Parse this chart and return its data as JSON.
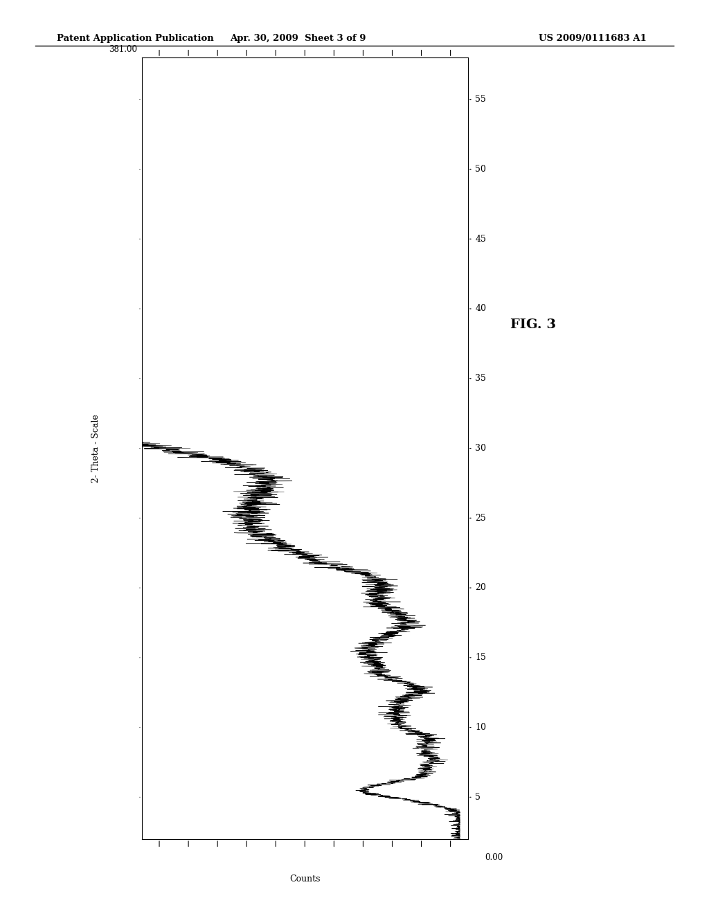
{
  "header_left": "Patent Application Publication",
  "header_mid": "Apr. 30, 2009  Sheet 3 of 9",
  "header_right": "US 2009/0111683 A1",
  "fig_label": "FIG. 3",
  "x_label": "Counts",
  "y_label": "2- Theta - Scale",
  "count_max": 381.0,
  "count_min": 0.0,
  "theta_min": 2,
  "theta_max": 58,
  "theta_ticks": [
    5,
    10,
    15,
    20,
    25,
    30,
    35,
    40,
    45,
    50,
    55
  ],
  "background_color": "#ffffff",
  "line_color": "#000000",
  "seed": 42
}
